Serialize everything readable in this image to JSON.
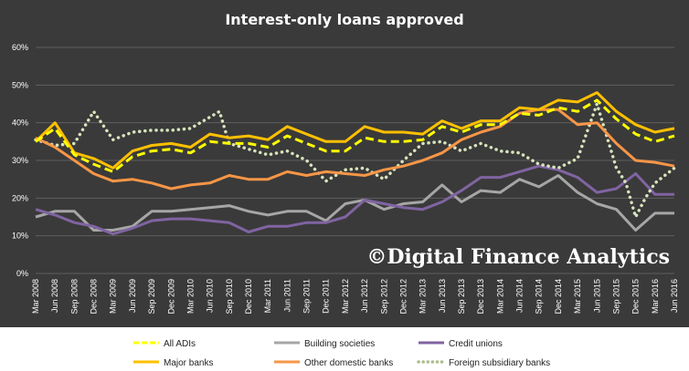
{
  "chart_data": {
    "type": "line",
    "title": "Interest-only loans approved",
    "watermark": "©Digital Finance Analytics",
    "ylim": [
      0,
      60
    ],
    "y_ticks": [
      "0%",
      "10%",
      "20%",
      "30%",
      "40%",
      "50%",
      "60%"
    ],
    "y_unit": "%",
    "grid": true,
    "legend_position": "bottom",
    "categories": [
      "Mar 2008",
      "Jun 2008",
      "Sep 2008",
      "Dec 2008",
      "Mar 2009",
      "Jun 2009",
      "Sep 2009",
      "Dec 2009",
      "Mar 2010",
      "Jun 2010",
      "Sep 2010",
      "Dec 2010",
      "Mar 2011",
      "Jun 2011",
      "Sep 2011",
      "Dec 2011",
      "Mar 2012",
      "Jun 2012",
      "Sep 2012",
      "Dec 2012",
      "Mar 2013",
      "Jun 2013",
      "Sep 2013",
      "Dec 2013",
      "Mar 2014",
      "Jun 2014",
      "Sep 2014",
      "Dec 2014",
      "Mar 2015",
      "Jun 2015",
      "Sep 2015",
      "Dec 2015",
      "Mar 2016",
      "Jun 2016"
    ],
    "x": [
      0,
      1,
      2,
      3,
      4,
      5,
      6,
      7,
      8,
      9,
      10,
      11,
      12,
      13,
      14,
      15,
      16,
      17,
      18,
      19,
      20,
      21,
      22,
      23,
      24,
      25,
      26,
      27,
      28,
      29,
      30,
      31,
      32,
      33
    ],
    "x_tick_positions": [
      0,
      2,
      4,
      6,
      8,
      10,
      12,
      14,
      16,
      18,
      20,
      22,
      24,
      26,
      28,
      30,
      32,
      34,
      36,
      38,
      40,
      42,
      44,
      46,
      48,
      50,
      52,
      54,
      56,
      58,
      60,
      62,
      64,
      66
    ],
    "series": [
      {
        "name": "All ADIs",
        "color": "#FFFF00",
        "dash": "dash",
        "x": [
          0,
          2,
          4,
          6,
          8,
          10,
          12,
          14,
          16,
          18,
          20,
          22,
          24,
          26,
          28,
          30,
          32,
          34,
          36,
          38,
          40,
          42,
          44,
          46,
          48,
          50,
          52,
          54,
          56,
          58,
          60,
          62,
          64,
          66
        ],
        "values": [
          35,
          38.5,
          31.5,
          29,
          27,
          31,
          32.5,
          33,
          32,
          35,
          34.5,
          34.5,
          33.5,
          36.5,
          34.5,
          32.5,
          32.5,
          36,
          35,
          35,
          35.5,
          39,
          37.5,
          39.5,
          39.5,
          42.5,
          42,
          44,
          43,
          46,
          41,
          37,
          35,
          36.5
        ]
      },
      {
        "name": "Building societies",
        "color": "#A6A6A6",
        "dash": "solid",
        "x": [
          0,
          2,
          4,
          6,
          8,
          10,
          12,
          14,
          16,
          18,
          20,
          22,
          24,
          26,
          28,
          30,
          32,
          34,
          36,
          38,
          40,
          42,
          44,
          46,
          48,
          50,
          52,
          54,
          56,
          58,
          60,
          62,
          64,
          66
        ],
        "values": [
          15,
          16.5,
          16.5,
          11.5,
          11.5,
          12.5,
          16.5,
          16.5,
          17,
          17.5,
          18,
          16.5,
          15.5,
          16.5,
          16.5,
          14,
          18.5,
          19.5,
          17,
          18.5,
          19,
          23.5,
          19,
          22,
          21.5,
          25,
          23,
          26,
          21.5,
          18.5,
          17,
          11.5,
          16,
          16
        ]
      },
      {
        "name": "Credit unions",
        "color": "#8064A2",
        "dash": "solid",
        "x": [
          0,
          2,
          4,
          6,
          8,
          10,
          12,
          14,
          16,
          18,
          20,
          22,
          24,
          26,
          28,
          30,
          32,
          34,
          36,
          38,
          40,
          42,
          44,
          46,
          48,
          50,
          52,
          54,
          56,
          58,
          60,
          62,
          64,
          66
        ],
        "values": [
          17,
          15.5,
          13.5,
          12.5,
          10.5,
          12,
          14,
          14.5,
          14.5,
          14,
          13.5,
          11,
          12.5,
          12.5,
          13.5,
          13.5,
          15,
          19.5,
          18.5,
          17.5,
          17,
          19,
          22,
          25.5,
          25.5,
          27,
          28.5,
          27.5,
          25.5,
          21.5,
          22.5,
          26.5,
          21,
          21
        ]
      },
      {
        "name": "Major banks",
        "color": "#FFC000",
        "dash": "solid",
        "x": [
          0,
          2,
          4,
          6,
          8,
          10,
          12,
          14,
          16,
          18,
          20,
          22,
          24,
          26,
          28,
          30,
          32,
          34,
          36,
          38,
          40,
          42,
          44,
          46,
          48,
          50,
          52,
          54,
          56,
          58,
          60,
          62,
          64,
          66
        ],
        "values": [
          35,
          40,
          32,
          30.5,
          28,
          32.5,
          34,
          34.5,
          33.5,
          37,
          36,
          36.5,
          35.5,
          39,
          37,
          35,
          35,
          39,
          37.5,
          37.5,
          37,
          40.5,
          38.5,
          40.5,
          40.5,
          44,
          43.5,
          46,
          45.5,
          48,
          43,
          39.5,
          37.5,
          38.5
        ]
      },
      {
        "name": "Other domestic banks",
        "color": "#F79646",
        "dash": "solid",
        "x": [
          0,
          2,
          4,
          6,
          8,
          10,
          12,
          14,
          16,
          18,
          20,
          22,
          24,
          26,
          28,
          30,
          32,
          34,
          36,
          38,
          40,
          42,
          44,
          46,
          48,
          50,
          52,
          54,
          56,
          58,
          60,
          62,
          64,
          66
        ],
        "values": [
          36,
          33.5,
          30,
          26.5,
          24.5,
          25,
          24,
          22.5,
          23.5,
          24,
          26,
          25,
          25,
          27,
          26,
          27,
          26.5,
          26,
          27.5,
          28.5,
          30,
          32,
          35.5,
          37.5,
          39,
          42.5,
          43.5,
          43.5,
          39.5,
          40,
          34.5,
          30,
          29.5,
          28.5
        ]
      },
      {
        "name": "Foreign subsidiary banks",
        "color": "#D8E4BC",
        "dash": "dot",
        "x": [
          0,
          2,
          4,
          6,
          8,
          10,
          12,
          14,
          16,
          18,
          19,
          20,
          22,
          24,
          26,
          28,
          30,
          32,
          34,
          36,
          38,
          40,
          42,
          44,
          46,
          48,
          50,
          52,
          54,
          56,
          58,
          60,
          61,
          62,
          63,
          64,
          66
        ],
        "values": [
          35.5,
          34,
          34.5,
          43,
          35.5,
          37.5,
          38,
          38,
          38.5,
          41.5,
          43,
          34.5,
          33,
          31.5,
          32.5,
          30,
          24.5,
          27.5,
          28,
          25,
          30,
          34.5,
          35,
          32.5,
          34.5,
          32.5,
          32,
          29,
          28,
          30.5,
          45,
          28,
          24,
          15,
          20,
          24,
          28
        ]
      }
    ]
  }
}
